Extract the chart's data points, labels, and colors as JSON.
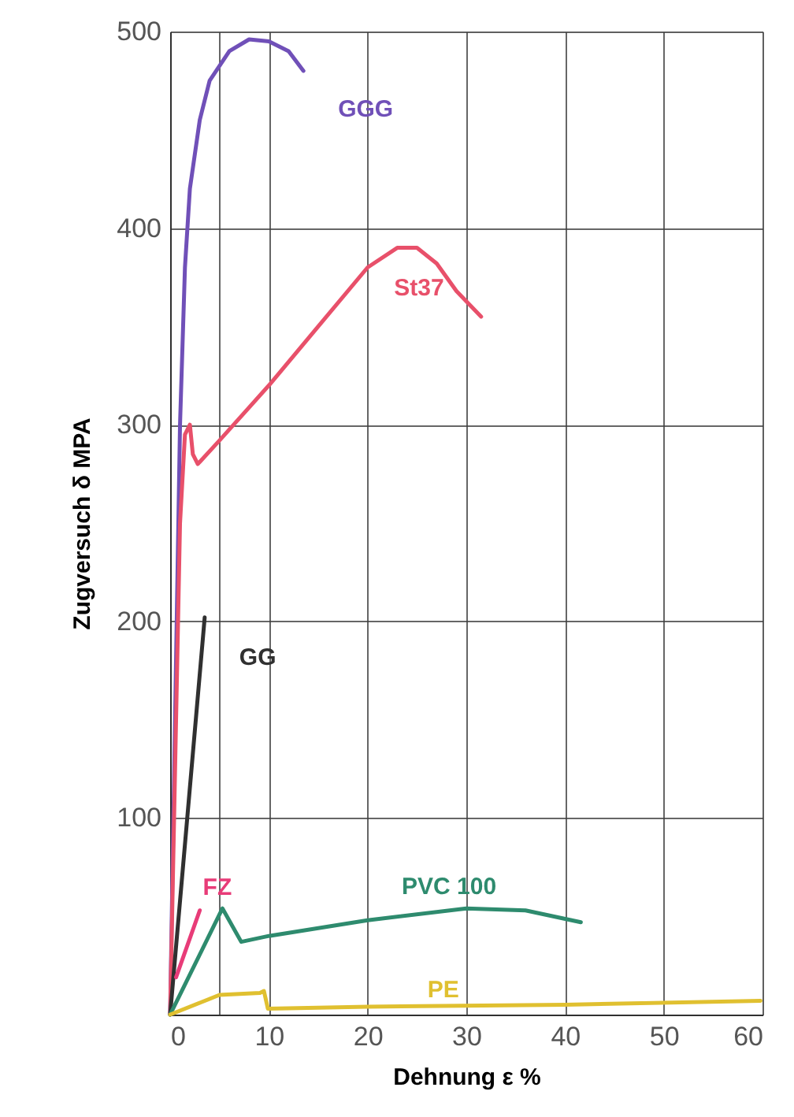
{
  "chart_data": {
    "type": "line",
    "xlabel": "Dehnung ε %",
    "ylabel": "Zugversuch δ MPA",
    "xlim": [
      0,
      60
    ],
    "ylim": [
      0,
      500
    ],
    "xticks": [
      0,
      {
        "value": 5,
        "label": null
      },
      10,
      20,
      30,
      40,
      50,
      60
    ],
    "yticks": [
      100,
      200,
      300,
      400,
      500
    ],
    "grid": true,
    "legend": false,
    "marker": "none",
    "line_style": "solid",
    "series": [
      {
        "name": "GGG",
        "color": "#7050b8",
        "x": [
          0,
          0.5,
          1,
          1.5,
          2,
          3,
          4,
          6,
          8,
          10,
          12,
          13.5
        ],
        "values": [
          0,
          150,
          300,
          380,
          420,
          455,
          475,
          490,
          496,
          495,
          490,
          480
        ]
      },
      {
        "name": "St37",
        "color": "#e8506a",
        "x": [
          0,
          1,
          1.5,
          2,
          2.3,
          2.8,
          5,
          10,
          15,
          20,
          23,
          25,
          27,
          29,
          31.5
        ],
        "values": [
          0,
          250,
          295,
          300,
          285,
          280,
          292,
          320,
          350,
          380,
          390,
          390,
          382,
          368,
          355
        ]
      },
      {
        "name": "GG",
        "color": "#303030",
        "x": [
          0,
          3.5
        ],
        "values": [
          0,
          202
        ]
      },
      {
        "name": "FZ",
        "color": "#e83c78",
        "x": [
          0.6,
          3.0
        ],
        "values": [
          19,
          53
        ]
      },
      {
        "name": "PVC 100",
        "color": "#2e8b6e",
        "x": [
          0,
          5.3,
          7.2,
          10,
          20,
          30,
          36,
          41.6
        ],
        "values": [
          0,
          54,
          37,
          40,
          48,
          54,
          53,
          47
        ]
      },
      {
        "name": "PE",
        "color": "#e0c030",
        "x": [
          0,
          5,
          9.1,
          9.5,
          9.9,
          20,
          40,
          59.8
        ],
        "values": [
          0,
          10,
          11,
          12,
          3,
          4,
          5,
          7
        ]
      }
    ]
  }
}
